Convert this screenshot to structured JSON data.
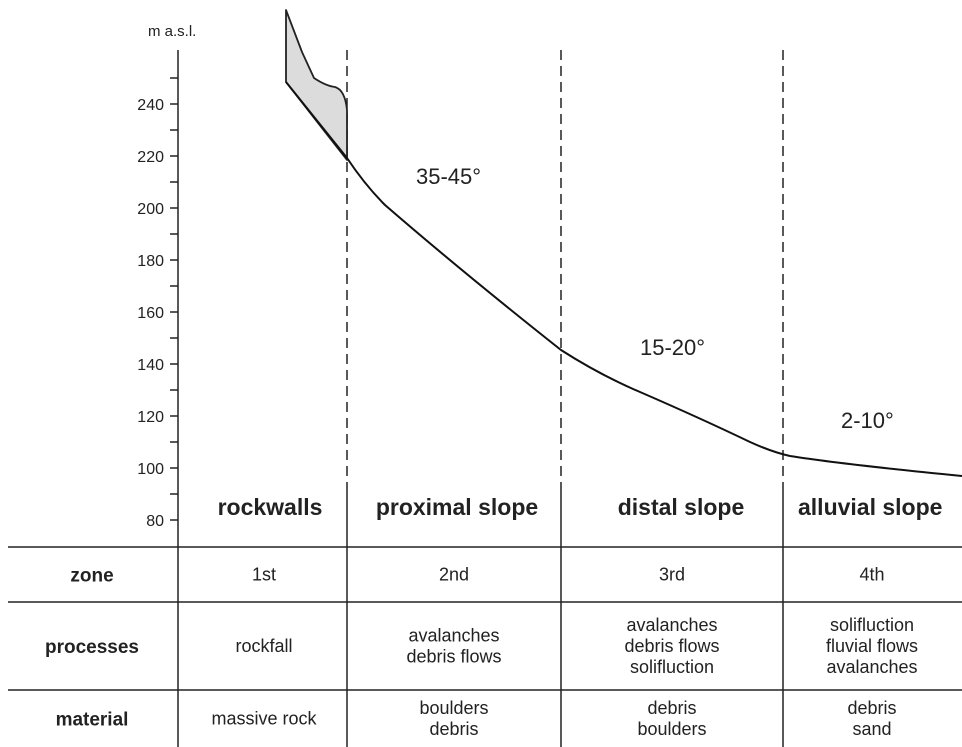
{
  "axis": {
    "unit": "m a.s.l.",
    "ticks": [
      240,
      220,
      200,
      180,
      160,
      140,
      120,
      100,
      80
    ]
  },
  "angles": [
    "35-45°",
    "15-20°",
    "2-10°"
  ],
  "zones": [
    "rockwalls",
    "proximal slope",
    "distal slope",
    "alluvial slope"
  ],
  "table": {
    "rows": [
      {
        "key": "zone",
        "header": "zone",
        "cells": [
          [
            "1st"
          ],
          [
            "2nd"
          ],
          [
            "3rd"
          ],
          [
            "4th"
          ]
        ]
      },
      {
        "key": "processes",
        "header": "processes",
        "cells": [
          [
            "rockfall"
          ],
          [
            "avalanches",
            "debris flows"
          ],
          [
            "avalanches",
            "debris flows",
            "solifluction"
          ],
          [
            "solifluction",
            "fluvial flows",
            "avalanches"
          ]
        ]
      },
      {
        "key": "material",
        "header": "material",
        "cells": [
          [
            "massive rock"
          ],
          [
            "boulders",
            "debris"
          ],
          [
            "debris",
            "boulders"
          ],
          [
            "debris",
            "sand"
          ]
        ]
      }
    ]
  }
}
